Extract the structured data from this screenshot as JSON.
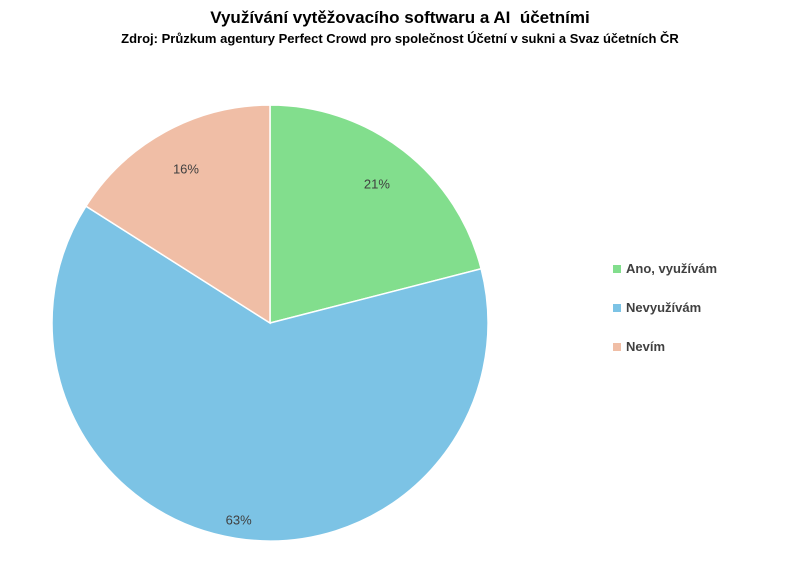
{
  "chart_data": {
    "type": "pie",
    "title": "Využívání vytěžovacího softwaru a AI  účetními",
    "subtitle": "Zdroj: Průzkum agentury Perfect Crowd pro společnost Účetní v sukni a Svaz účetních ČR",
    "start_angle_deg": 0,
    "direction": "clockwise",
    "legend_position": "right",
    "series": [
      {
        "slices": [
          {
            "label": "Ano, využívám",
            "value": 21,
            "value_label": "21%",
            "color": "#82DE8D"
          },
          {
            "label": "Nevyužívám",
            "value": 63,
            "value_label": "63%",
            "color": "#7CC3E5"
          },
          {
            "label": "Nevím",
            "value": 16,
            "value_label": "16%",
            "color": "#F0BEA6"
          }
        ]
      }
    ]
  }
}
